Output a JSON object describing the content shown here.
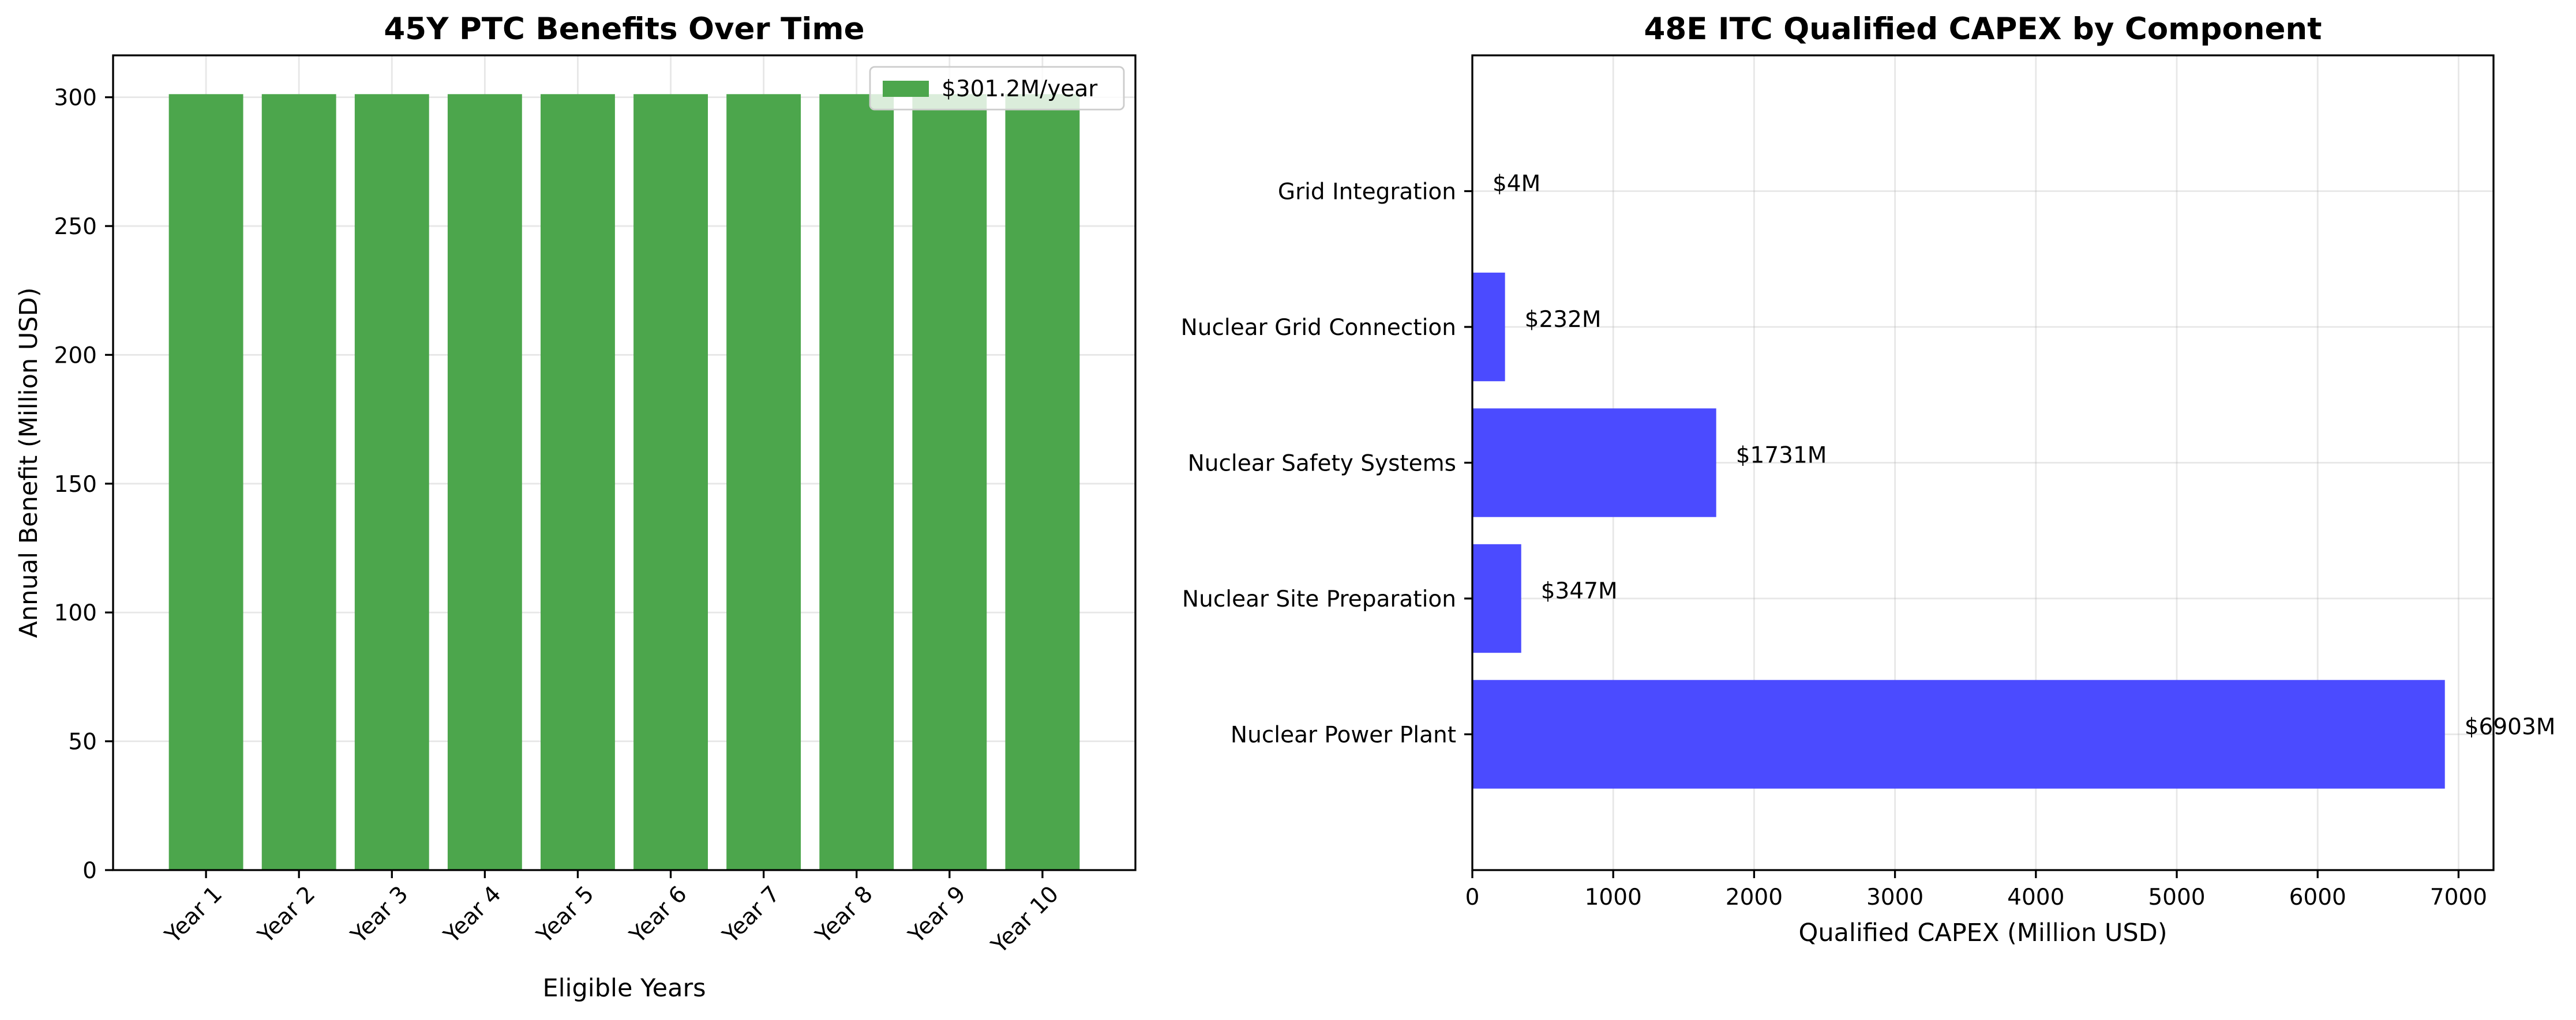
{
  "chart_data": [
    {
      "type": "bar",
      "title": "45Y PTC Benefits Over Time",
      "xlabel": "Eligible Years",
      "ylabel": "Annual Benefit (Million USD)",
      "categories": [
        "Year 1",
        "Year 2",
        "Year 3",
        "Year 4",
        "Year 5",
        "Year 6",
        "Year 7",
        "Year 8",
        "Year 9",
        "Year 10"
      ],
      "series": [
        {
          "name": "$301.2M/year",
          "values": [
            301.2,
            301.2,
            301.2,
            301.2,
            301.2,
            301.2,
            301.2,
            301.2,
            301.2,
            301.2
          ],
          "color": "#4ca64c"
        }
      ],
      "ylim": [
        0,
        316.26
      ],
      "yticks": [
        0,
        50,
        100,
        150,
        200,
        250,
        300
      ],
      "grid": true,
      "legend_position": "top-right",
      "tick_rotation": 45
    },
    {
      "type": "bar",
      "orientation": "horizontal",
      "title": "48E ITC Qualified CAPEX by Component",
      "xlabel": "Qualified CAPEX (Million USD)",
      "ylabel": "",
      "categories": [
        "Nuclear Power Plant",
        "Nuclear Site Preparation",
        "Nuclear Safety Systems",
        "Nuclear Grid Connection",
        "Grid Integration"
      ],
      "values": [
        6903,
        347,
        1731,
        232,
        4
      ],
      "data_labels": [
        "$6903M",
        "$347M",
        "$1731M",
        "$232M",
        "$4M"
      ],
      "color": "#4b4bff",
      "xlim": [
        0,
        7248.15
      ],
      "xticks": [
        0,
        1000,
        2000,
        3000,
        4000,
        5000,
        6000,
        7000
      ],
      "grid": true
    }
  ]
}
